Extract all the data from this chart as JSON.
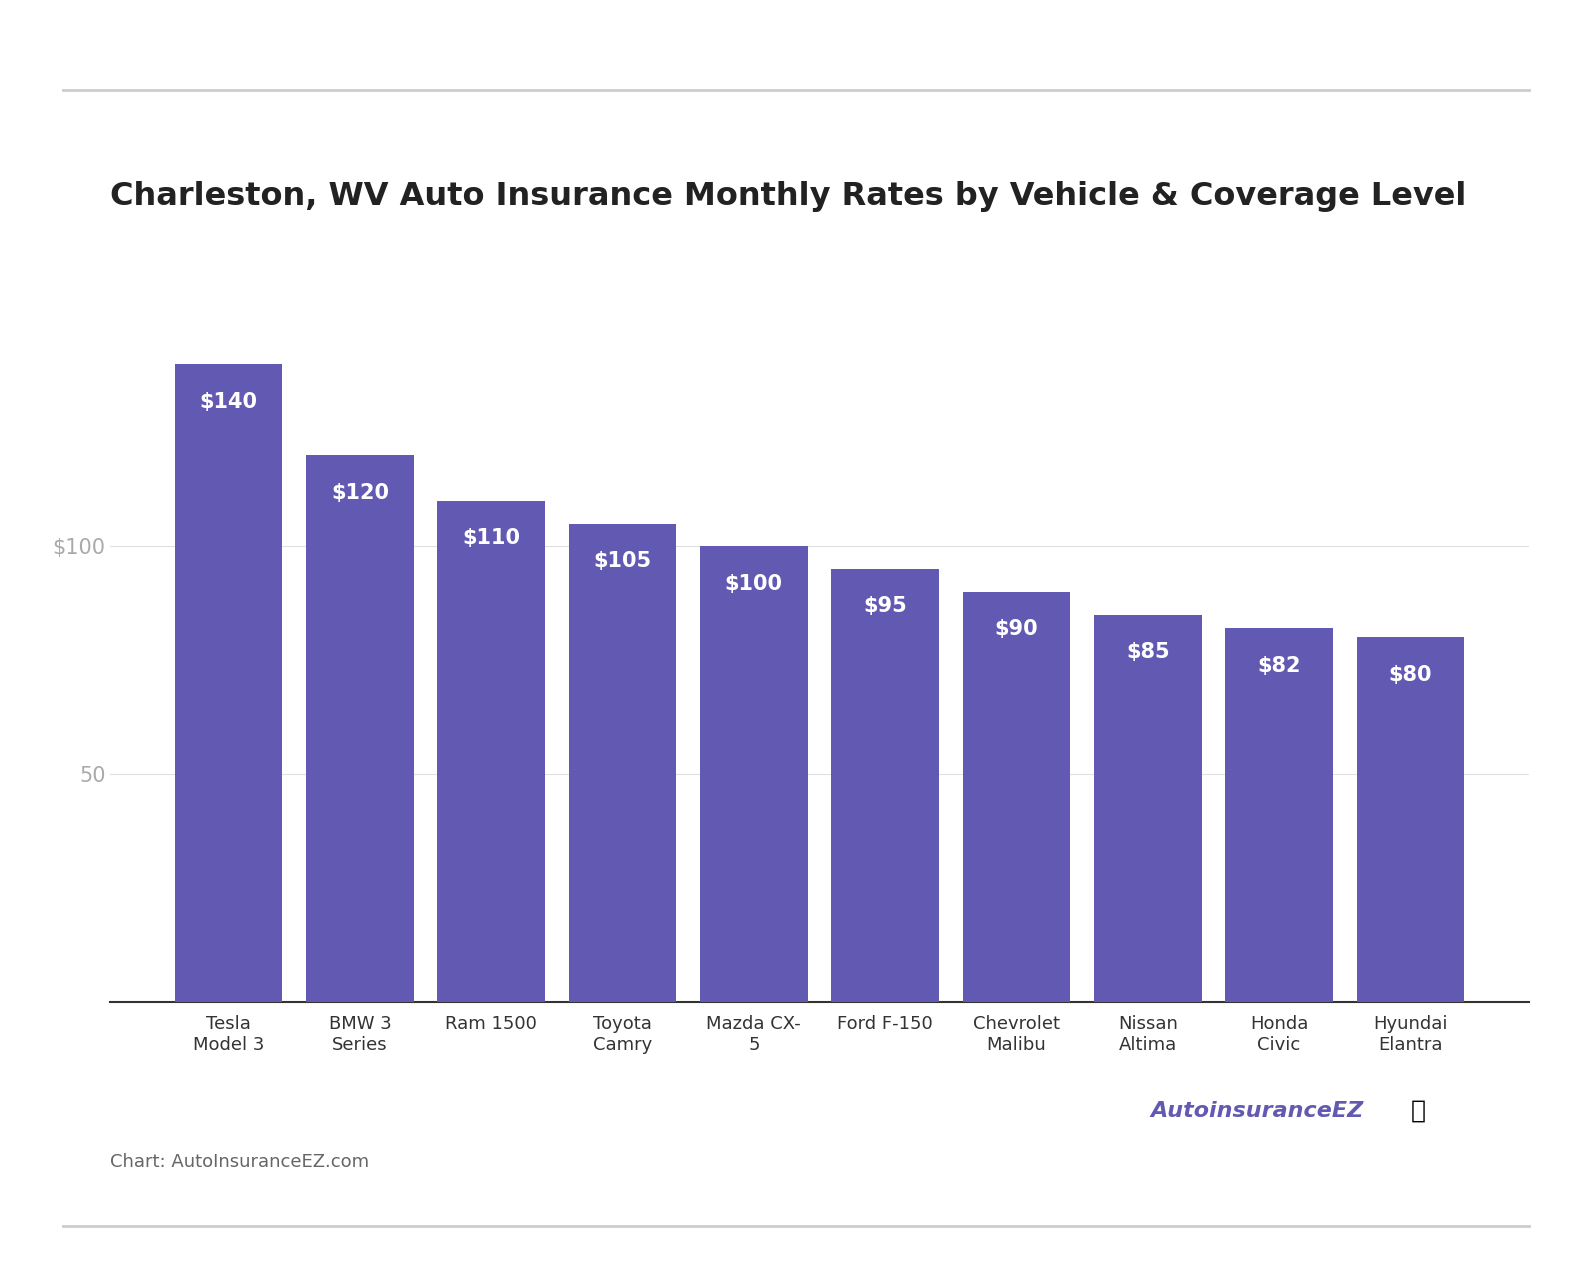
{
  "title": "Charleston, WV Auto Insurance Monthly Rates by Vehicle & Coverage Level",
  "categories": [
    "Tesla\nModel 3",
    "BMW 3\nSeries",
    "Ram 1500",
    "Toyota\nCamry",
    "Mazda CX-\n5",
    "Ford F-150",
    "Chevrolet\nMalibu",
    "Nissan\nAltima",
    "Honda\nCivic",
    "Hyundai\nElantra"
  ],
  "values": [
    140,
    120,
    110,
    105,
    100,
    95,
    90,
    85,
    82,
    80
  ],
  "bar_color": "#6259b3",
  "label_color": "#ffffff",
  "label_fontsize": 15,
  "title_fontsize": 23,
  "ytick_values": [
    50,
    100
  ],
  "ytick_labels": [
    "50",
    "$100"
  ],
  "ytick_color": "#aaaaaa",
  "axis_line_color": "#333333",
  "grid_color": "#e0e0e0",
  "background_color": "#ffffff",
  "bar_width": 0.82,
  "ylim": [
    0,
    158
  ],
  "footer_text": "Chart: AutoInsuranceEZ.com",
  "footer_color": "#666666",
  "footer_fontsize": 13,
  "watermark_color": "#6259b3",
  "separator_color": "#cccccc",
  "xtick_color": "#333333",
  "xtick_fontsize": 13
}
